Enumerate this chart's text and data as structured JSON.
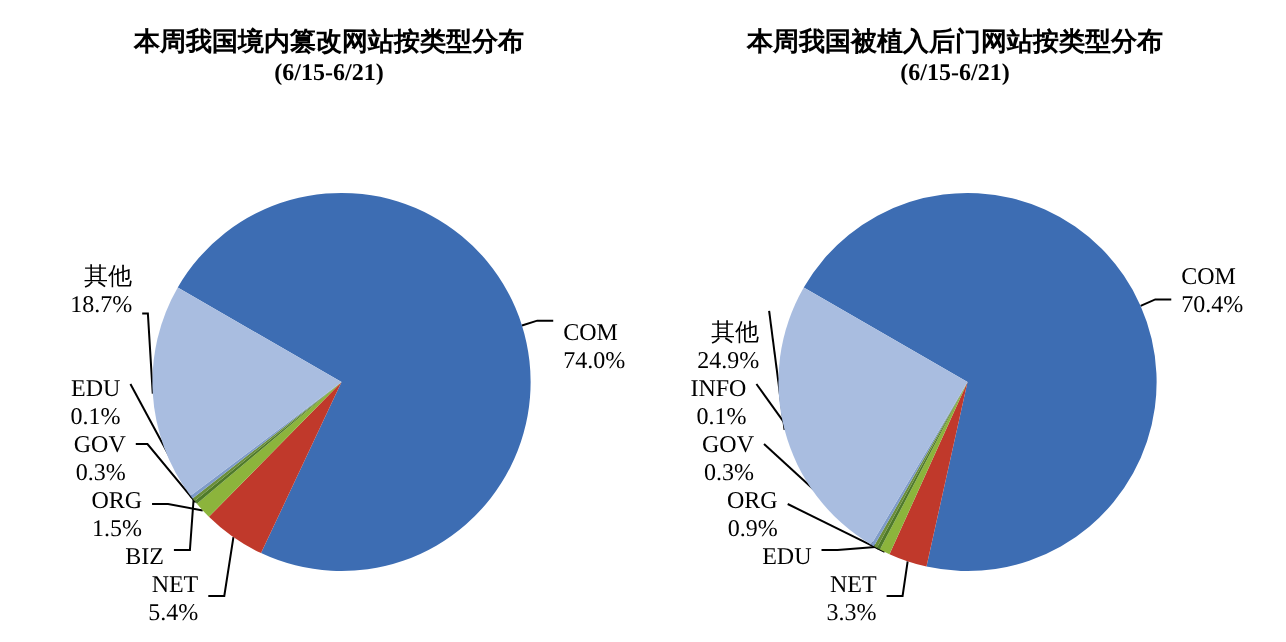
{
  "chart_data": [
    {
      "type": "pie",
      "title": "本周我国境内篡改网站按类型分布",
      "subtitle": "(6/15-6/21)",
      "categories": [
        "COM",
        "NET",
        "ORG",
        "GOV",
        "BIZ",
        "EDU",
        "其他"
      ],
      "values": [
        74.0,
        5.4,
        1.5,
        0.3,
        0.1,
        0.1,
        18.7
      ],
      "value_labels": [
        "74.0%",
        "5.4%",
        "1.5%",
        "0.3%",
        null,
        "0.1%",
        "18.7%"
      ],
      "colors": [
        "#3d6db3",
        "#c0392b",
        "#8cb43c",
        "#4f7a2a",
        "#6b8e3a",
        "#7e9bc9",
        "#a9bde0"
      ],
      "legend": false
    },
    {
      "type": "pie",
      "title": "本周我国被植入后门网站按类型分布",
      "subtitle": "(6/15-6/21)",
      "categories": [
        "COM",
        "NET",
        "ORG",
        "GOV",
        "EDU",
        "INFO",
        "其他"
      ],
      "values": [
        70.4,
        3.3,
        0.9,
        0.3,
        0.1,
        0.1,
        24.9
      ],
      "value_labels": [
        "70.4%",
        "3.3%",
        "0.9%",
        "0.3%",
        null,
        "0.1%",
        "24.9%"
      ],
      "colors": [
        "#3d6db3",
        "#c0392b",
        "#8cb43c",
        "#4f7a2a",
        "#6b8e3a",
        "#7e9bc9",
        "#a9bde0"
      ],
      "legend": false
    }
  ]
}
